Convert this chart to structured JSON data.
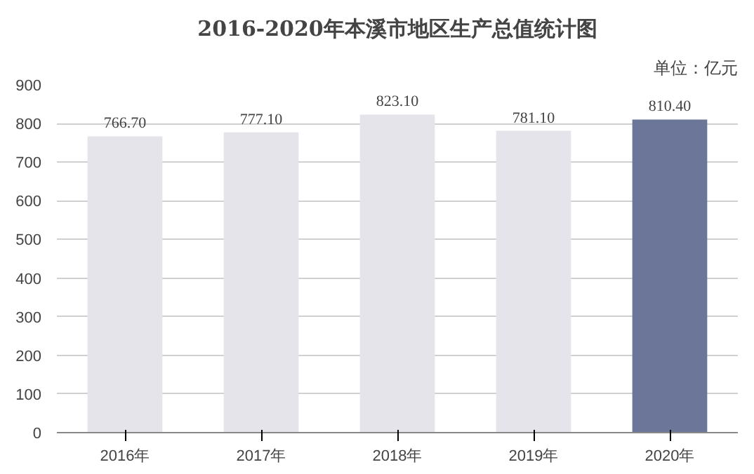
{
  "chart_data": {
    "type": "bar",
    "title": "2016-2020年本溪市地区生产总值统计图",
    "annotations": [
      "单位：亿元"
    ],
    "categories": [
      "2016年",
      "2017年",
      "2018年",
      "2019年",
      "2020年"
    ],
    "values": [
      766.7,
      777.1,
      823.1,
      781.1,
      810.4
    ],
    "colors": [
      "#e4e4ea",
      "#e4e4ea",
      "#e4e4ea",
      "#e4e4ea",
      "#6c7698"
    ],
    "value_labels": [
      "766.70",
      "777.10",
      "823.10",
      "781.10",
      "810.40"
    ],
    "ylim": [
      0,
      900
    ],
    "yticks": [
      0,
      100,
      200,
      300,
      400,
      500,
      600,
      700,
      800,
      900
    ],
    "grid": "y"
  }
}
